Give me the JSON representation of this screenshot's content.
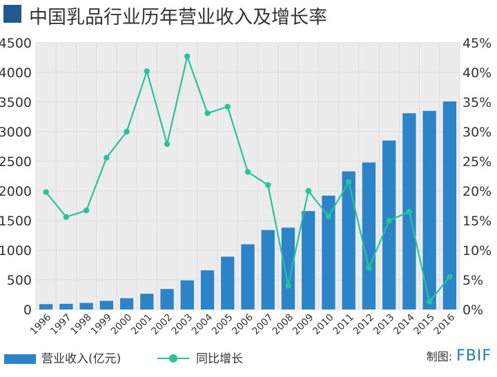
{
  "title": "中国乳品行业历年营业收入及增长率",
  "legend": {
    "bar_label": "营业收入(亿元)",
    "line_label": "同比增长"
  },
  "source": {
    "label": "制图:",
    "brand": "FBIF"
  },
  "colors": {
    "bar": "#2a84c7",
    "line": "#24c59a",
    "title_marker": "#1f5b8e",
    "grid": "#dddddd",
    "plot_bg": "#ececec"
  },
  "chart_data": {
    "type": "bar",
    "categories": [
      "1996",
      "1997",
      "1998",
      "1999",
      "2000",
      "2001",
      "2002",
      "2003",
      "2004",
      "2005",
      "2006",
      "2007",
      "2008",
      "2009",
      "2010",
      "2011",
      "2012",
      "2013",
      "2014",
      "2015",
      "2016"
    ],
    "series": [
      {
        "name": "营业收入(亿元)",
        "type": "bar",
        "axis": "left",
        "values": [
          90,
          95,
          110,
          145,
          190,
          265,
          345,
          490,
          660,
          890,
          1100,
          1340,
          1380,
          1660,
          1920,
          2330,
          2480,
          2850,
          3310,
          3350,
          3510
        ]
      },
      {
        "name": "同比增长",
        "type": "line",
        "axis": "right",
        "values": [
          0.198,
          0.156,
          0.167,
          0.256,
          0.3,
          0.402,
          0.279,
          0.427,
          0.331,
          0.342,
          0.232,
          0.21,
          0.04,
          0.2,
          0.157,
          0.215,
          0.07,
          0.15,
          0.165,
          0.013,
          0.055
        ]
      }
    ],
    "y_left": {
      "min": 0,
      "max": 4500,
      "ticks": [
        "0",
        "500",
        "1000",
        "1500",
        "2000",
        "2500",
        "3000",
        "3500",
        "4000",
        "4500"
      ]
    },
    "y_right": {
      "min": 0,
      "max": 0.45,
      "ticks": [
        "0%",
        "5%",
        "10%",
        "15%",
        "20%",
        "25%",
        "30%",
        "35%",
        "40%",
        "45%"
      ]
    },
    "grid": true,
    "legend_position": "bottom-left"
  }
}
